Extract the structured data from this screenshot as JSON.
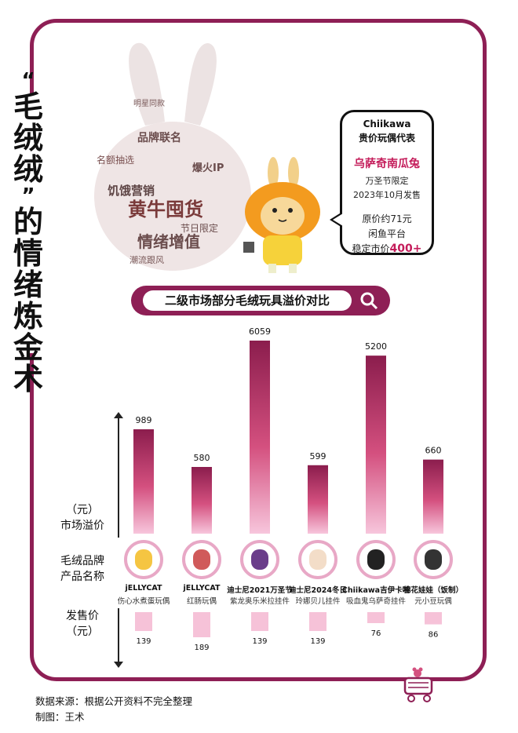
{
  "title_vertical": [
    "“",
    "毛",
    "绒",
    "绒",
    "”",
    "的",
    "情",
    "绪",
    "炼",
    "金",
    "术"
  ],
  "wordcloud": {
    "words": [
      "明星同款",
      "品牌联名",
      "名额抽选",
      "爆火IP",
      "饥饿营销",
      "黄牛囤货",
      "节日限定",
      "情绪增值",
      "潮流跟风"
    ]
  },
  "bubble": {
    "brand": "Chiikawa",
    "subtitle": "贵价玩偶代表",
    "product": "乌萨奇南瓜兔",
    "line1": "万圣节限定",
    "line2": "2023年10月发售",
    "line3": "原价约71元",
    "line4": "闲鱼平台",
    "line5_prefix": "稳定市价",
    "line5_value": "400+"
  },
  "chart_title": "二级市场部分毛绒玩具溢价对比",
  "left_labels": {
    "premium_unit": "（元）",
    "premium": "市场溢价",
    "product_line1": "毛绒品牌",
    "product_line2": "产品名称",
    "price_line1": "发售价",
    "price_line2": "（元）"
  },
  "colors": {
    "frame": "#8e1f55",
    "bar_top": "#8b1d4d",
    "bar_bottom": "#f7c6dc",
    "price_bar": "#f6c2d8",
    "accent": "#c41c5a"
  },
  "chart_data": {
    "type": "bar",
    "title": "二级市场部分毛绒玩具溢价对比",
    "ylabel": "市场溢价（元）",
    "categories": [
      {
        "brand": "jELLYCAT",
        "name": "伤心水煮蛋玩偶"
      },
      {
        "brand": "jELLYCAT",
        "name": "红肠玩偶"
      },
      {
        "brand": "迪士尼2021万圣节",
        "name": "紫龙奥乐米拉挂件"
      },
      {
        "brand": "迪士尼2024冬日",
        "name": "玲娜贝儿挂件"
      },
      {
        "brand": "Chiikawa吉伊卡哇",
        "name": "吸血鬼乌萨奇挂件"
      },
      {
        "brand": "棉花娃娃（饭制）",
        "name": "元小豆玩偶"
      }
    ],
    "series": [
      {
        "name": "市场溢价",
        "values": [
          989,
          580,
          6059,
          599,
          5200,
          660
        ]
      },
      {
        "name": "发售价",
        "values": [
          139,
          189,
          139,
          139,
          76,
          86
        ]
      }
    ],
    "value_labels": [
      "989",
      "580",
      "6059",
      "599",
      "5200",
      "660"
    ],
    "price_labels": [
      "139",
      "189",
      "139",
      "139",
      "76",
      "86"
    ]
  },
  "footer": {
    "source": "数据来源：根据公开资料不完全整理",
    "author": "制图：王术"
  }
}
